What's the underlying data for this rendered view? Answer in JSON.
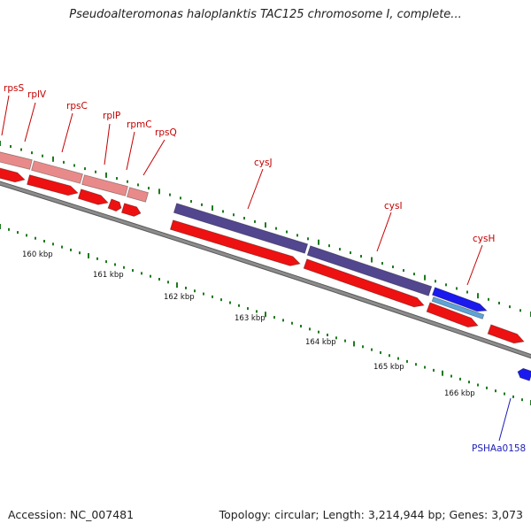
{
  "header": {
    "title": "Pseudoalteromonas haloplanktis TAC125 chromosome I, complete..."
  },
  "footer": {
    "accession": "Accession: NC_007481",
    "summary": "Topology: circular; Length: 3,214,944 bp; Genes: 3,073"
  },
  "colors": {
    "background": "#ffffff",
    "backbone": "#8c8c8c",
    "tick": "#1f7a1f",
    "cds_red": "#ee1111",
    "ribosomal_pink": "#e98a8a",
    "cys_purple": "#52468f",
    "cysH_blue": "#1a1aee",
    "cysH_lightblue": "#5fa3d6",
    "label_red": "#c40000",
    "label_blue": "#1d1db8"
  },
  "gene_labels": [
    {
      "id": "rpsS",
      "text": "rpsS",
      "color": "red"
    },
    {
      "id": "rplV",
      "text": "rplV",
      "color": "red"
    },
    {
      "id": "rpsC",
      "text": "rpsC",
      "color": "red"
    },
    {
      "id": "rplP",
      "text": "rplP",
      "color": "red"
    },
    {
      "id": "rpmC",
      "text": "rpmC",
      "color": "red"
    },
    {
      "id": "rpsQ",
      "text": "rpsQ",
      "color": "red"
    },
    {
      "id": "cysJ",
      "text": "cysJ",
      "color": "red"
    },
    {
      "id": "cysI",
      "text": "cysI",
      "color": "red"
    },
    {
      "id": "cysH",
      "text": "cysH",
      "color": "red"
    },
    {
      "id": "PSHAa0158",
      "text": "PSHAa0158",
      "color": "blue"
    }
  ],
  "scale_labels": [
    "160 kbp",
    "161 kbp",
    "162 kbp",
    "163 kbp",
    "164 kbp",
    "165 kbp",
    "166 kbp"
  ]
}
